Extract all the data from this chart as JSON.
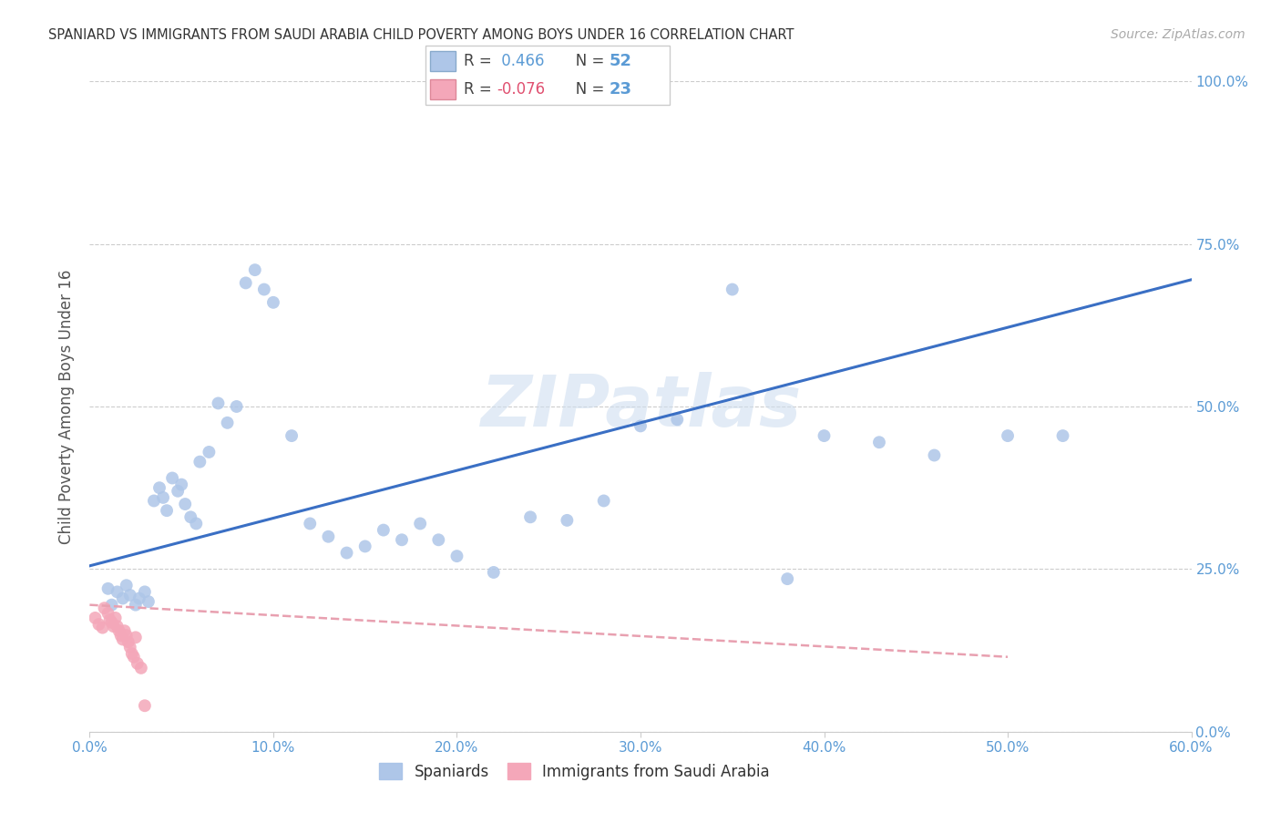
{
  "title": "SPANIARD VS IMMIGRANTS FROM SAUDI ARABIA CHILD POVERTY AMONG BOYS UNDER 16 CORRELATION CHART",
  "source": "Source: ZipAtlas.com",
  "ylabel": "Child Poverty Among Boys Under 16",
  "xlim": [
    0.0,
    0.6
  ],
  "ylim": [
    0.0,
    1.0
  ],
  "x_tick_vals": [
    0.0,
    0.1,
    0.2,
    0.3,
    0.4,
    0.5,
    0.6
  ],
  "x_tick_labels": [
    "0.0%",
    "10.0%",
    "20.0%",
    "30.0%",
    "40.0%",
    "50.0%",
    "60.0%"
  ],
  "y_tick_vals": [
    0.0,
    0.25,
    0.5,
    0.75,
    1.0
  ],
  "y_tick_labels": [
    "0.0%",
    "25.0%",
    "50.0%",
    "75.0%",
    "100.0%"
  ],
  "spaniards_x": [
    0.01,
    0.012,
    0.015,
    0.018,
    0.02,
    0.022,
    0.025,
    0.027,
    0.03,
    0.032,
    0.035,
    0.038,
    0.04,
    0.042,
    0.045,
    0.048,
    0.05,
    0.052,
    0.055,
    0.058,
    0.06,
    0.065,
    0.07,
    0.075,
    0.08,
    0.085,
    0.09,
    0.095,
    0.1,
    0.11,
    0.12,
    0.13,
    0.14,
    0.15,
    0.16,
    0.17,
    0.18,
    0.19,
    0.2,
    0.22,
    0.24,
    0.26,
    0.28,
    0.3,
    0.32,
    0.35,
    0.38,
    0.4,
    0.43,
    0.46,
    0.5,
    0.53
  ],
  "spaniards_y": [
    0.22,
    0.195,
    0.215,
    0.205,
    0.225,
    0.21,
    0.195,
    0.205,
    0.215,
    0.2,
    0.355,
    0.375,
    0.36,
    0.34,
    0.39,
    0.37,
    0.38,
    0.35,
    0.33,
    0.32,
    0.415,
    0.43,
    0.505,
    0.475,
    0.5,
    0.69,
    0.71,
    0.68,
    0.66,
    0.455,
    0.32,
    0.3,
    0.275,
    0.285,
    0.31,
    0.295,
    0.32,
    0.295,
    0.27,
    0.245,
    0.33,
    0.325,
    0.355,
    0.47,
    0.48,
    0.68,
    0.235,
    0.455,
    0.445,
    0.425,
    0.455,
    0.455
  ],
  "saudi_x": [
    0.003,
    0.005,
    0.007,
    0.008,
    0.01,
    0.011,
    0.012,
    0.013,
    0.014,
    0.015,
    0.016,
    0.017,
    0.018,
    0.019,
    0.02,
    0.021,
    0.022,
    0.023,
    0.024,
    0.025,
    0.026,
    0.028,
    0.03
  ],
  "saudi_y": [
    0.175,
    0.165,
    0.16,
    0.19,
    0.182,
    0.172,
    0.168,
    0.162,
    0.175,
    0.162,
    0.155,
    0.148,
    0.142,
    0.155,
    0.148,
    0.138,
    0.13,
    0.12,
    0.115,
    0.145,
    0.105,
    0.098,
    0.04
  ],
  "blue_line_x": [
    0.0,
    0.6
  ],
  "blue_line_y": [
    0.255,
    0.695
  ],
  "pink_line_x": [
    0.0,
    0.5
  ],
  "pink_line_y": [
    0.195,
    0.115
  ],
  "dot_color_blue": "#aec6e8",
  "dot_color_pink": "#f4a7b9",
  "line_color_blue": "#3a6fc4",
  "line_color_pink": "#e8a0b0",
  "background_color": "#ffffff",
  "grid_color": "#cccccc",
  "title_color": "#333333",
  "tick_label_color": "#5b9bd5",
  "watermark": "ZIPatlas",
  "watermark_color": "#d0dff0",
  "r_blue": "0.466",
  "n_blue": "52",
  "r_pink": "-0.076",
  "n_pink": "23",
  "legend_label_blue": "Spaniards",
  "legend_label_pink": "Immigrants from Saudi Arabia"
}
